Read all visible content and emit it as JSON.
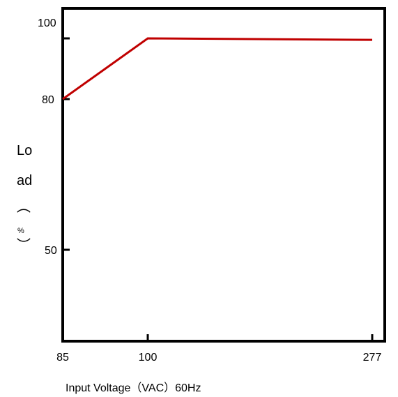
{
  "chart_data": {
    "type": "line",
    "title": "",
    "xlabel": "Input Voltage（VAC）60Hz",
    "ylabel_lines": [
      "Lo",
      "ad",
      "︵",
      "%",
      "︶"
    ],
    "x_ticks": [
      "85",
      "100",
      "277"
    ],
    "y_ticks": [
      "100",
      "80",
      "50"
    ],
    "x_tick_values": [
      85,
      100,
      277
    ],
    "y_tick_values": [
      100,
      80,
      50
    ],
    "series": [
      {
        "x": [
          85,
          100,
          277
        ],
        "y": [
          80,
          100,
          99.5
        ],
        "color": "#c00000"
      }
    ],
    "line_color": "#c00000",
    "axis_color": "#000000",
    "grid": false
  }
}
